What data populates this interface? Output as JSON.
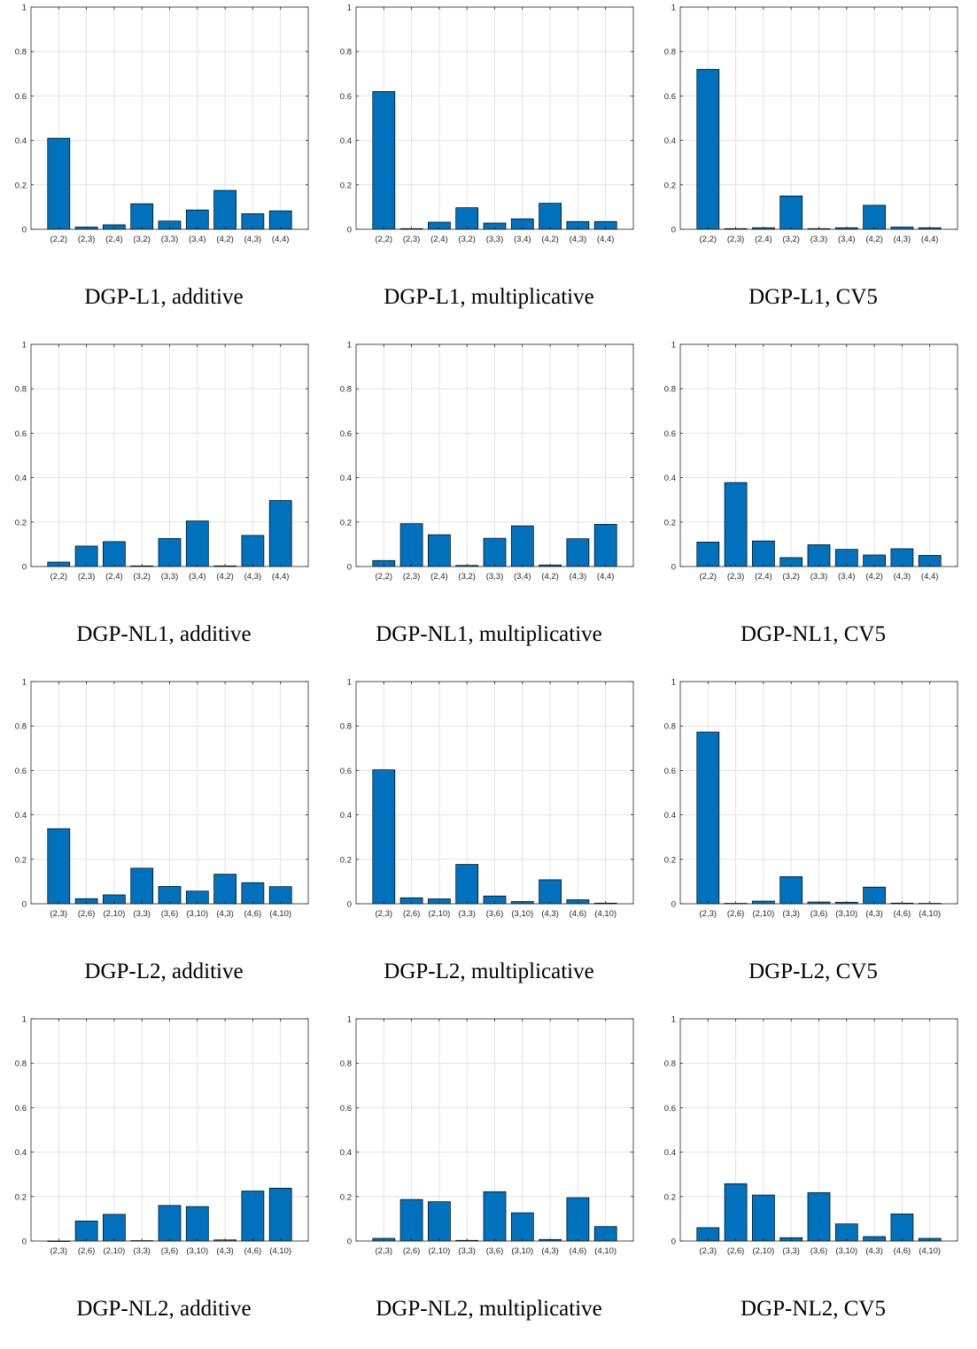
{
  "bar_color": "#0072BD",
  "bar_edge_color": "#000000",
  "grid_color": "#e3e3e3",
  "chart_data": [
    {
      "type": "bar",
      "title": "DGP-L1, additive",
      "categories": [
        "(2,2)",
        "(2,3)",
        "(2,4)",
        "(3,2)",
        "(3,3)",
        "(3,4)",
        "(4,2)",
        "(4,3)",
        "(4,4)"
      ],
      "values": [
        0.41,
        0.01,
        0.02,
        0.115,
        0.037,
        0.087,
        0.175,
        0.07,
        0.083
      ],
      "ylim": [
        0,
        1
      ],
      "yticks": [
        "0",
        "0.2",
        "0.4",
        "0.6",
        "0.8",
        "1"
      ],
      "grid": true
    },
    {
      "type": "bar",
      "title": "DGP-L1, multiplicative",
      "categories": [
        "(2,2)",
        "(2,3)",
        "(2,4)",
        "(3,2)",
        "(3,3)",
        "(3,4)",
        "(4,2)",
        "(4,3)",
        "(4,4)"
      ],
      "values": [
        0.62,
        0.003,
        0.032,
        0.097,
        0.028,
        0.047,
        0.117,
        0.035,
        0.035
      ],
      "ylim": [
        0,
        1
      ],
      "yticks": [
        "0",
        "0.2",
        "0.4",
        "0.6",
        "0.8",
        "1"
      ],
      "grid": true
    },
    {
      "type": "bar",
      "title": "DGP-L1, CV5",
      "categories": [
        "(2,2)",
        "(2,3)",
        "(2,4)",
        "(3,2)",
        "(3,3)",
        "(3,4)",
        "(4,2)",
        "(4,3)",
        "(4,4)"
      ],
      "values": [
        0.72,
        0.003,
        0.007,
        0.15,
        0.003,
        0.007,
        0.108,
        0.01,
        0.007
      ],
      "ylim": [
        0,
        1
      ],
      "yticks": [
        "0",
        "0.2",
        "0.4",
        "0.6",
        "0.8",
        "1"
      ],
      "grid": true
    },
    {
      "type": "bar",
      "title": "DGP-NL1, additive",
      "categories": [
        "(2,2)",
        "(2,3)",
        "(2,4)",
        "(3,2)",
        "(3,3)",
        "(3,4)",
        "(4,2)",
        "(4,3)",
        "(4,4)"
      ],
      "values": [
        0.02,
        0.092,
        0.112,
        0.003,
        0.126,
        0.205,
        0.003,
        0.14,
        0.297
      ],
      "ylim": [
        0,
        1
      ],
      "yticks": [
        "0",
        "0.2",
        "0.4",
        "0.6",
        "0.8",
        "1"
      ],
      "grid": true
    },
    {
      "type": "bar",
      "title": "DGP-NL1, multiplicative",
      "categories": [
        "(2,2)",
        "(2,3)",
        "(2,4)",
        "(3,2)",
        "(3,3)",
        "(3,4)",
        "(4,2)",
        "(4,3)",
        "(4,4)"
      ],
      "values": [
        0.027,
        0.193,
        0.143,
        0.005,
        0.127,
        0.183,
        0.007,
        0.125,
        0.19
      ],
      "ylim": [
        0,
        1
      ],
      "yticks": [
        "0",
        "0.2",
        "0.4",
        "0.6",
        "0.8",
        "1"
      ],
      "grid": true
    },
    {
      "type": "bar",
      "title": "DGP-NL1, CV5",
      "categories": [
        "(2,2)",
        "(2,3)",
        "(2,4)",
        "(3,2)",
        "(3,3)",
        "(3,4)",
        "(4,2)",
        "(4,3)",
        "(4,4)"
      ],
      "values": [
        0.11,
        0.378,
        0.115,
        0.04,
        0.098,
        0.077,
        0.052,
        0.08,
        0.05
      ],
      "ylim": [
        0,
        1
      ],
      "yticks": [
        "0",
        "0.2",
        "0.4",
        "0.6",
        "0.8",
        "1"
      ],
      "grid": true
    },
    {
      "type": "bar",
      "title": "DGP-L2, additive",
      "categories": [
        "(2,3)",
        "(2,6)",
        "(2,10)",
        "(3,3)",
        "(3,6)",
        "(3,10)",
        "(4,3)",
        "(4,6)",
        "(4,10)"
      ],
      "values": [
        0.338,
        0.023,
        0.04,
        0.16,
        0.078,
        0.057,
        0.133,
        0.095,
        0.077
      ],
      "ylim": [
        0,
        1
      ],
      "yticks": [
        "0",
        "0.2",
        "0.4",
        "0.6",
        "0.8",
        "1"
      ],
      "grid": true
    },
    {
      "type": "bar",
      "title": "DGP-L2, multiplicative",
      "categories": [
        "(2,3)",
        "(2,6)",
        "(2,10)",
        "(3,3)",
        "(3,6)",
        "(3,10)",
        "(4,3)",
        "(4,6)",
        "(4,10)"
      ],
      "values": [
        0.603,
        0.027,
        0.022,
        0.177,
        0.035,
        0.01,
        0.108,
        0.018,
        0.003
      ],
      "ylim": [
        0,
        1
      ],
      "yticks": [
        "0",
        "0.2",
        "0.4",
        "0.6",
        "0.8",
        "1"
      ],
      "grid": true
    },
    {
      "type": "bar",
      "title": "DGP-L2, CV5",
      "categories": [
        "(2,3)",
        "(2,6)",
        "(2,10)",
        "(3,3)",
        "(3,6)",
        "(3,10)",
        "(4,3)",
        "(4,6)",
        "(4,10)"
      ],
      "values": [
        0.773,
        0.002,
        0.012,
        0.122,
        0.008,
        0.007,
        0.075,
        0.003,
        0.002
      ],
      "ylim": [
        0,
        1
      ],
      "yticks": [
        "0",
        "0.2",
        "0.4",
        "0.6",
        "0.8",
        "1"
      ],
      "grid": true
    },
    {
      "type": "bar",
      "title": "DGP-NL2, additive",
      "categories": [
        "(2,3)",
        "(2,6)",
        "(2,10)",
        "(3,3)",
        "(3,6)",
        "(3,10)",
        "(4,3)",
        "(4,6)",
        "(4,10)"
      ],
      "values": [
        0.0,
        0.09,
        0.12,
        0.002,
        0.16,
        0.155,
        0.005,
        0.225,
        0.238
      ],
      "ylim": [
        0,
        1
      ],
      "yticks": [
        "0",
        "0.2",
        "0.4",
        "0.6",
        "0.8",
        "1"
      ],
      "grid": true
    },
    {
      "type": "bar",
      "title": "DGP-NL2, multiplicative",
      "categories": [
        "(2,3)",
        "(2,6)",
        "(2,10)",
        "(3,3)",
        "(3,6)",
        "(3,10)",
        "(4,3)",
        "(4,6)",
        "(4,10)"
      ],
      "values": [
        0.012,
        0.187,
        0.177,
        0.003,
        0.222,
        0.127,
        0.007,
        0.195,
        0.065
      ],
      "ylim": [
        0,
        1
      ],
      "yticks": [
        "0",
        "0.2",
        "0.4",
        "0.6",
        "0.8",
        "1"
      ],
      "grid": true
    },
    {
      "type": "bar",
      "title": "DGP-NL2, CV5",
      "categories": [
        "(2,3)",
        "(2,6)",
        "(2,10)",
        "(3,3)",
        "(3,6)",
        "(3,10)",
        "(4,3)",
        "(4,6)",
        "(4,10)"
      ],
      "values": [
        0.06,
        0.258,
        0.207,
        0.015,
        0.218,
        0.077,
        0.02,
        0.122,
        0.012
      ],
      "ylim": [
        0,
        1
      ],
      "yticks": [
        "0",
        "0.2",
        "0.4",
        "0.6",
        "0.8",
        "1"
      ],
      "grid": true
    }
  ]
}
